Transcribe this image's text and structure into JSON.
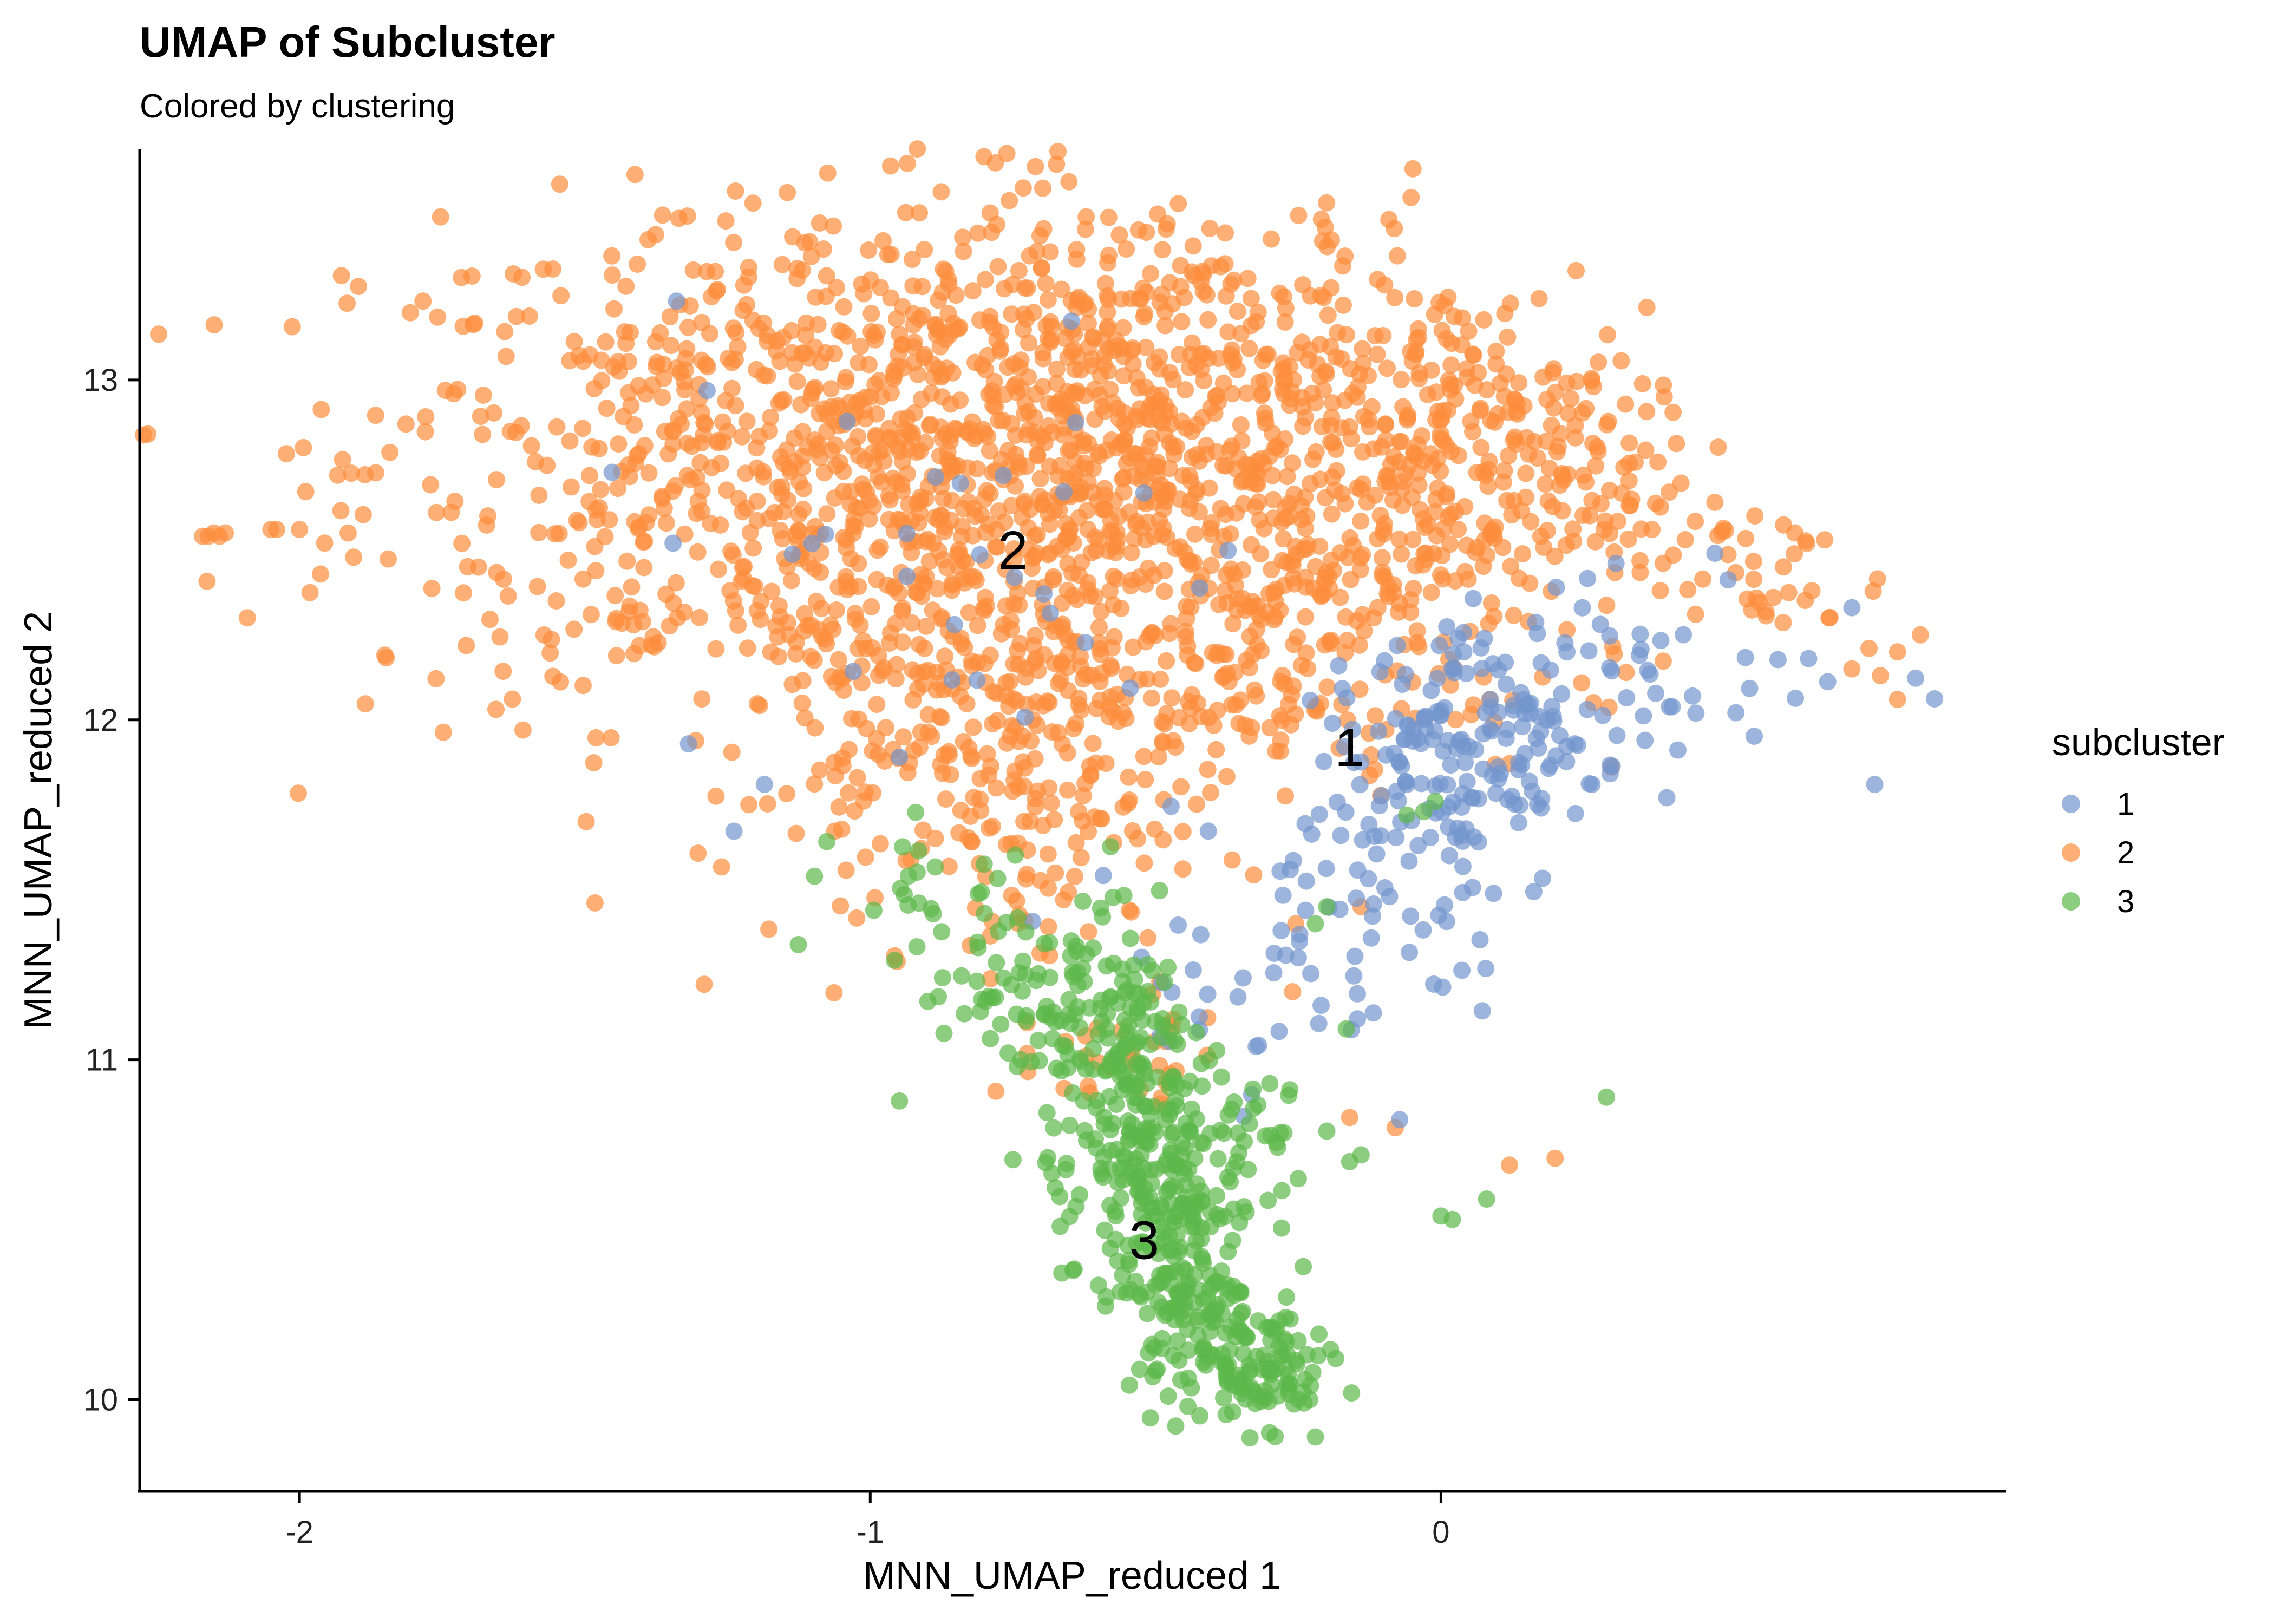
{
  "chart_data": {
    "type": "scatter",
    "title": "UMAP of Subcluster",
    "subtitle": "Colored by clustering",
    "xlabel": "MNN_UMAP_reduced 1",
    "ylabel": "MNN_UMAP_reduced 2",
    "xlim": [
      -2.28,
      0.99
    ],
    "ylim": [
      9.73,
      13.68
    ],
    "xticks": [
      -2,
      -1,
      0
    ],
    "yticks": [
      10,
      11,
      12,
      13
    ],
    "xtick_labels": [
      "-2",
      "-1",
      "0"
    ],
    "ytick_labels": [
      "10",
      "11",
      "12",
      "13"
    ],
    "grid": false,
    "legend_title": "subcluster",
    "legend_position": "right",
    "series": [
      {
        "name": "1",
        "color": "#7396cd",
        "blobs": [
          {
            "cx": 0.08,
            "cy": 11.95,
            "sx": 0.13,
            "sy": 0.15,
            "n": 150
          },
          {
            "cx": -0.12,
            "cy": 11.55,
            "sx": 0.12,
            "sy": 0.22,
            "n": 70
          },
          {
            "cx": 0.35,
            "cy": 12.15,
            "sx": 0.2,
            "sy": 0.15,
            "n": 45
          },
          {
            "cx": -0.9,
            "cy": 12.5,
            "sx": 0.3,
            "sy": 0.35,
            "n": 35
          },
          {
            "cx": -0.35,
            "cy": 11.1,
            "sx": 0.12,
            "sy": 0.2,
            "n": 25
          }
        ],
        "points": [
          {
            "x": 0.76,
            "y": 11.81
          },
          {
            "x": 0.72,
            "y": 12.33
          },
          {
            "x": 0.48,
            "y": 12.49
          },
          {
            "x": -0.28,
            "y": 11.38
          },
          {
            "x": -0.25,
            "y": 11.3
          },
          {
            "x": -0.21,
            "y": 11.16
          },
          {
            "x": -0.09,
            "y": 11.48
          },
          {
            "x": -0.19,
            "y": 11.99
          },
          {
            "x": 0.14,
            "y": 12.08
          },
          {
            "x": 0.03,
            "y": 12.24
          },
          {
            "x": -0.06,
            "y": 11.81
          },
          {
            "x": 0.16,
            "y": 11.79
          },
          {
            "x": -0.04,
            "y": 11.63
          },
          {
            "x": 0.04,
            "y": 12.2
          }
        ],
        "label": {
          "text": "1",
          "x": -0.16,
          "y": 11.92
        }
      },
      {
        "name": "2",
        "color": "#fc8d3c",
        "blobs": [
          {
            "cx": -1.05,
            "cy": 12.75,
            "sx": 0.42,
            "sy": 0.38,
            "n": 900
          },
          {
            "cx": -0.55,
            "cy": 12.9,
            "sx": 0.3,
            "sy": 0.35,
            "n": 500
          },
          {
            "cx": -0.2,
            "cy": 12.65,
            "sx": 0.28,
            "sy": 0.28,
            "n": 300
          },
          {
            "cx": 0.1,
            "cy": 12.85,
            "sx": 0.18,
            "sy": 0.22,
            "n": 140
          },
          {
            "cx": -0.8,
            "cy": 12.1,
            "sx": 0.25,
            "sy": 0.3,
            "n": 280
          },
          {
            "cx": -0.75,
            "cy": 11.65,
            "sx": 0.15,
            "sy": 0.25,
            "n": 90
          },
          {
            "cx": 0.45,
            "cy": 12.45,
            "sx": 0.18,
            "sy": 0.12,
            "n": 45
          },
          {
            "cx": -0.55,
            "cy": 11.0,
            "sx": 0.1,
            "sy": 0.1,
            "n": 30
          },
          {
            "cx": -0.3,
            "cy": 12.2,
            "sx": 0.25,
            "sy": 0.2,
            "n": 120
          }
        ],
        "points": [
          {
            "x": -2.17,
            "y": 12.54
          },
          {
            "x": -2.16,
            "y": 12.54
          },
          {
            "x": -2.15,
            "y": 12.55
          },
          {
            "x": -2.14,
            "y": 12.54
          },
          {
            "x": -2.13,
            "y": 12.55
          },
          {
            "x": -2.05,
            "y": 12.56
          },
          {
            "x": -2.04,
            "y": 12.56
          },
          {
            "x": -2.0,
            "y": 12.56
          },
          {
            "x": -1.76,
            "y": 12.61
          },
          {
            "x": -1.67,
            "y": 12.6
          },
          {
            "x": -1.51,
            "y": 12.58
          },
          {
            "x": -1.55,
            "y": 12.35
          },
          {
            "x": 0.84,
            "y": 12.25
          },
          {
            "x": 0.8,
            "y": 12.2
          },
          {
            "x": 0.77,
            "y": 12.13
          },
          {
            "x": 0.8,
            "y": 12.06
          },
          {
            "x": 0.75,
            "y": 12.21
          },
          {
            "x": 0.72,
            "y": 12.15
          },
          {
            "x": 0.68,
            "y": 12.3
          },
          {
            "x": 0.65,
            "y": 12.38
          },
          {
            "x": 0.6,
            "y": 12.45
          },
          {
            "x": 0.62,
            "y": 12.55
          },
          {
            "x": 0.55,
            "y": 12.6
          },
          {
            "x": 0.48,
            "y": 12.64
          },
          {
            "x": 0.4,
            "y": 12.67
          },
          {
            "x": 0.33,
            "y": 12.63
          },
          {
            "x": 0.25,
            "y": 12.72
          },
          {
            "x": 0.19,
            "y": 12.74
          },
          {
            "x": 0.15,
            "y": 12.83
          },
          {
            "x": -0.08,
            "y": 10.8
          },
          {
            "x": -0.16,
            "y": 10.83
          },
          {
            "x": 0.12,
            "y": 10.69
          },
          {
            "x": 0.2,
            "y": 10.71
          },
          {
            "x": -0.14,
            "y": 11.45
          },
          {
            "x": -0.26,
            "y": 11.2
          }
        ],
        "label": {
          "text": "2",
          "x": -0.75,
          "y": 12.5
        }
      },
      {
        "name": "3",
        "color": "#5db84a",
        "blobs": [
          {
            "cx": -0.55,
            "cy": 10.9,
            "sx": 0.07,
            "sy": 0.22,
            "n": 140
          },
          {
            "cx": -0.5,
            "cy": 10.6,
            "sx": 0.06,
            "sy": 0.2,
            "n": 140
          },
          {
            "cx": -0.42,
            "cy": 10.3,
            "sx": 0.06,
            "sy": 0.15,
            "n": 130
          },
          {
            "cx": -0.32,
            "cy": 10.08,
            "sx": 0.06,
            "sy": 0.08,
            "n": 90
          },
          {
            "cx": -0.68,
            "cy": 11.2,
            "sx": 0.12,
            "sy": 0.12,
            "n": 90
          },
          {
            "cx": -0.85,
            "cy": 11.45,
            "sx": 0.1,
            "sy": 0.12,
            "n": 25
          },
          {
            "cx": -0.4,
            "cy": 10.8,
            "sx": 0.1,
            "sy": 0.15,
            "n": 30
          }
        ],
        "points": [
          {
            "x": -0.22,
            "y": 9.89
          },
          {
            "x": -0.23,
            "y": 10.0
          },
          {
            "x": -0.24,
            "y": 9.99
          },
          {
            "x": -0.25,
            "y": 10.0
          },
          {
            "x": -0.2,
            "y": 11.45
          },
          {
            "x": -0.22,
            "y": 11.4
          },
          {
            "x": -0.14,
            "y": 10.72
          },
          {
            "x": -0.16,
            "y": 10.7
          },
          {
            "x": -0.2,
            "y": 10.79
          },
          {
            "x": -0.25,
            "y": 10.65
          },
          {
            "x": 0.0,
            "y": 10.54
          },
          {
            "x": 0.02,
            "y": 10.53
          },
          {
            "x": 0.08,
            "y": 10.59
          },
          {
            "x": 0.29,
            "y": 10.89
          },
          {
            "x": -0.03,
            "y": 11.73
          },
          {
            "x": -0.01,
            "y": 11.76
          },
          {
            "x": -0.06,
            "y": 11.72
          },
          {
            "x": -0.3,
            "y": 10.93
          }
        ],
        "label": {
          "text": "3",
          "x": -0.52,
          "y": 10.47
        }
      }
    ]
  }
}
